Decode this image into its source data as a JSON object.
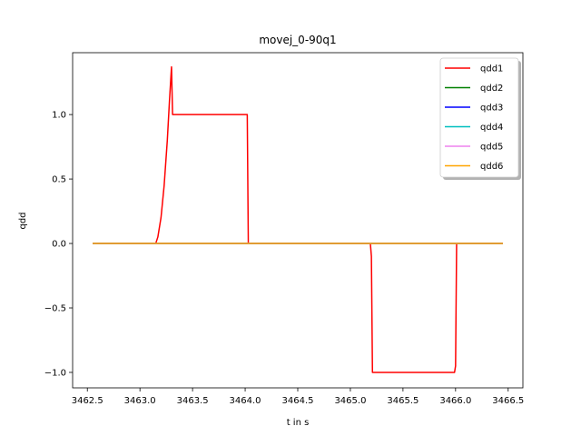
{
  "chart_data": {
    "type": "line",
    "title": "movej_0-90q1",
    "xlabel": "t in s",
    "ylabel": "qdd",
    "xlim": [
      3462.36,
      3466.64
    ],
    "ylim": [
      -1.12,
      1.48
    ],
    "xticks": [
      3462.5,
      3463.0,
      3463.5,
      3464.0,
      3464.5,
      3465.0,
      3465.5,
      3466.0,
      3466.5
    ],
    "xtick_labels": [
      "3462.5",
      "3463.0",
      "3463.5",
      "3464.0",
      "3464.5",
      "3465.0",
      "3465.5",
      "3466.0",
      "3466.5"
    ],
    "yticks": [
      -1.0,
      -0.5,
      0.0,
      0.5,
      1.0
    ],
    "ytick_labels": [
      "−1.0",
      "−0.5",
      "0.0",
      "0.5",
      "1.0"
    ],
    "grid": false,
    "legend_position": "top-right",
    "series": [
      {
        "name": "qdd1",
        "color": "#ff0000",
        "x": [
          3462.55,
          3463.15,
          3463.17,
          3463.2,
          3463.23,
          3463.26,
          3463.28,
          3463.3,
          3463.31,
          3463.32,
          3464.02,
          3464.03,
          3465.19,
          3465.2,
          3465.21,
          3465.99,
          3466.0,
          3466.01,
          3466.45
        ],
        "y": [
          0.0,
          0.0,
          0.05,
          0.2,
          0.45,
          0.8,
          1.1,
          1.37,
          1.0,
          1.0,
          1.0,
          0.0,
          0.0,
          -0.1,
          -1.0,
          -1.0,
          -0.95,
          0.0,
          0.0
        ]
      },
      {
        "name": "qdd2",
        "color": "#008000",
        "x": [
          3462.55,
          3466.45
        ],
        "y": [
          0.0,
          0.0
        ]
      },
      {
        "name": "qdd3",
        "color": "#0000ff",
        "x": [
          3462.55,
          3466.45
        ],
        "y": [
          0.0,
          0.0
        ]
      },
      {
        "name": "qdd4",
        "color": "#00bfbf",
        "x": [
          3462.55,
          3466.45
        ],
        "y": [
          0.0,
          0.0
        ]
      },
      {
        "name": "qdd5",
        "color": "#ee82ee",
        "x": [
          3462.55,
          3466.45
        ],
        "y": [
          0.0,
          0.0
        ]
      },
      {
        "name": "qdd6",
        "color": "#ffa500",
        "x": [
          3462.55,
          3466.45
        ],
        "y": [
          0.0,
          0.0
        ]
      }
    ]
  }
}
